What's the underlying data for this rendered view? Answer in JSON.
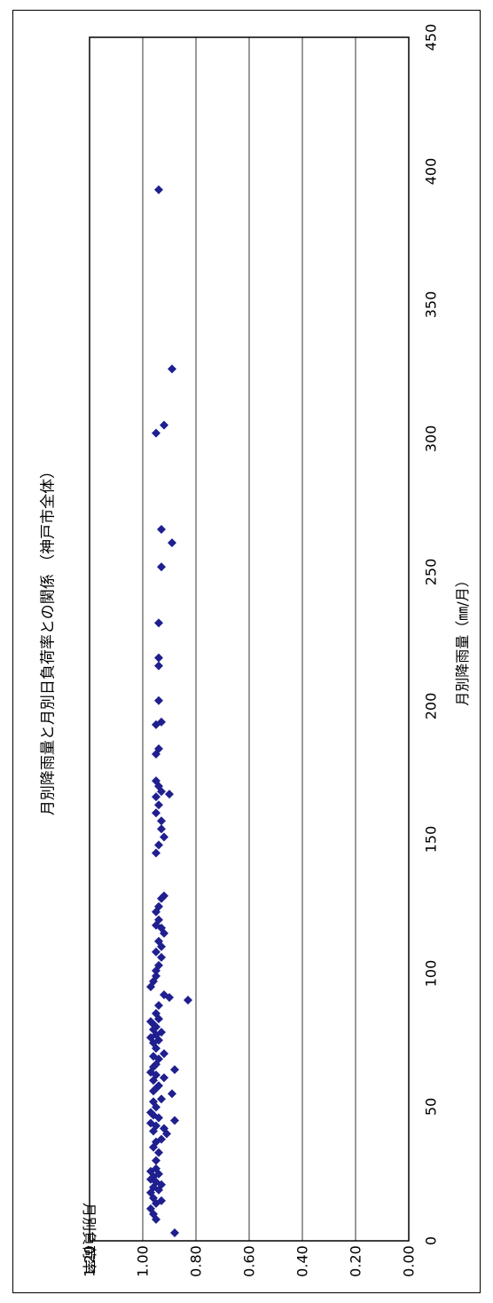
{
  "chart_data": {
    "type": "scatter",
    "title": "月別降雨量と月別日負荷率との関係 （神戸市全体）",
    "xlabel": "月別降雨量（㎜/月）",
    "ylabel": "月別負荷率",
    "xlim": [
      0,
      450
    ],
    "ylim": [
      0.0,
      1.2
    ],
    "x_ticks": [
      "0",
      "50",
      "100",
      "150",
      "200",
      "250",
      "300",
      "350",
      "400",
      "450"
    ],
    "y_ticks": [
      "0.00",
      "0.20",
      "0.40",
      "0.60",
      "0.80",
      "1.00",
      "1.20"
    ],
    "grid": "horizontal",
    "marker": "diamond",
    "color": "#1f1f8f",
    "points": [
      [
        3,
        0.88
      ],
      [
        8,
        0.95
      ],
      [
        10,
        0.96
      ],
      [
        12,
        0.97
      ],
      [
        14,
        0.95
      ],
      [
        15,
        0.93
      ],
      [
        16,
        0.96
      ],
      [
        18,
        0.97
      ],
      [
        19,
        0.94
      ],
      [
        20,
        0.96
      ],
      [
        21,
        0.93
      ],
      [
        22,
        0.95
      ],
      [
        23,
        0.97
      ],
      [
        24,
        0.96
      ],
      [
        25,
        0.94
      ],
      [
        26,
        0.97
      ],
      [
        27,
        0.95
      ],
      [
        30,
        0.95
      ],
      [
        33,
        0.94
      ],
      [
        35,
        0.96
      ],
      [
        37,
        0.95
      ],
      [
        38,
        0.93
      ],
      [
        40,
        0.91
      ],
      [
        41,
        0.96
      ],
      [
        42,
        0.92
      ],
      [
        43,
        0.95
      ],
      [
        44,
        0.97
      ],
      [
        45,
        0.88
      ],
      [
        46,
        0.94
      ],
      [
        47,
        0.96
      ],
      [
        48,
        0.97
      ],
      [
        50,
        0.95
      ],
      [
        52,
        0.96
      ],
      [
        53,
        0.93
      ],
      [
        55,
        0.89
      ],
      [
        56,
        0.96
      ],
      [
        57,
        0.95
      ],
      [
        58,
        0.94
      ],
      [
        60,
        0.96
      ],
      [
        61,
        0.92
      ],
      [
        62,
        0.95
      ],
      [
        63,
        0.97
      ],
      [
        64,
        0.88
      ],
      [
        65,
        0.96
      ],
      [
        66,
        0.95
      ],
      [
        68,
        0.94
      ],
      [
        69,
        0.96
      ],
      [
        70,
        0.92
      ],
      [
        72,
        0.95
      ],
      [
        74,
        0.96
      ],
      [
        75,
        0.94
      ],
      [
        76,
        0.97
      ],
      [
        77,
        0.95
      ],
      [
        78,
        0.93
      ],
      [
        79,
        0.96
      ],
      [
        80,
        0.95
      ],
      [
        81,
        0.96
      ],
      [
        82,
        0.97
      ],
      [
        83,
        0.94
      ],
      [
        85,
        0.95
      ],
      [
        88,
        0.94
      ],
      [
        90,
        0.83
      ],
      [
        91,
        0.9
      ],
      [
        92,
        0.92
      ],
      [
        95,
        0.97
      ],
      [
        97,
        0.96
      ],
      [
        99,
        0.95
      ],
      [
        101,
        0.95
      ],
      [
        103,
        0.94
      ],
      [
        106,
        0.93
      ],
      [
        108,
        0.95
      ],
      [
        110,
        0.93
      ],
      [
        112,
        0.94
      ],
      [
        115,
        0.92
      ],
      [
        117,
        0.93
      ],
      [
        118,
        0.95
      ],
      [
        120,
        0.94
      ],
      [
        123,
        0.95
      ],
      [
        125,
        0.94
      ],
      [
        128,
        0.93
      ],
      [
        129,
        0.92
      ],
      [
        145,
        0.95
      ],
      [
        148,
        0.94
      ],
      [
        151,
        0.92
      ],
      [
        154,
        0.93
      ],
      [
        157,
        0.93
      ],
      [
        160,
        0.95
      ],
      [
        163,
        0.94
      ],
      [
        166,
        0.95
      ],
      [
        167,
        0.9
      ],
      [
        168,
        0.93
      ],
      [
        170,
        0.94
      ],
      [
        172,
        0.95
      ],
      [
        182,
        0.95
      ],
      [
        184,
        0.94
      ],
      [
        193,
        0.95
      ],
      [
        194,
        0.93
      ],
      [
        202,
        0.94
      ],
      [
        215,
        0.94
      ],
      [
        218,
        0.94
      ],
      [
        231,
        0.94
      ],
      [
        252,
        0.93
      ],
      [
        261,
        0.89
      ],
      [
        266,
        0.93
      ],
      [
        302,
        0.95
      ],
      [
        305,
        0.92
      ],
      [
        326,
        0.89
      ],
      [
        393,
        0.94
      ]
    ]
  }
}
